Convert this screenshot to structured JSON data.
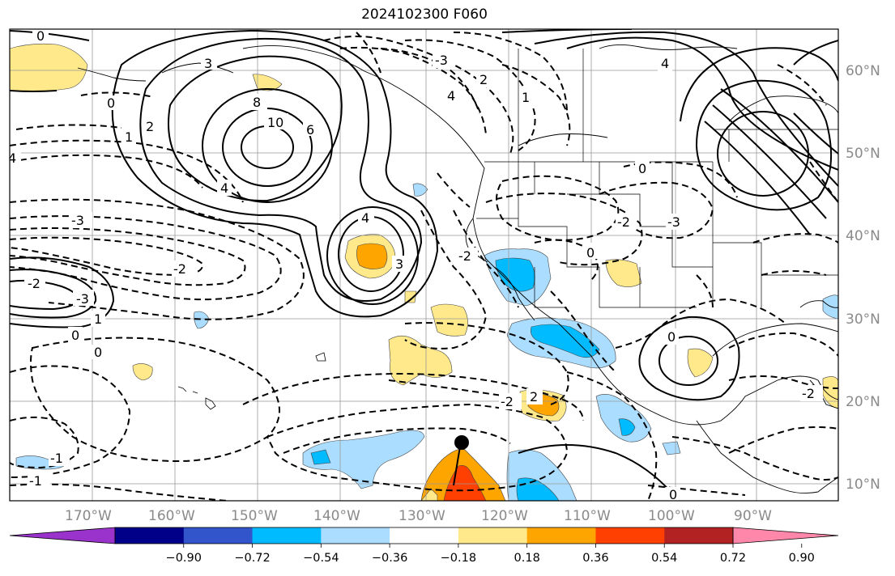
{
  "title": "2024102300 F060",
  "map": {
    "type": "contour-map",
    "longitude_labels": [
      "170°W",
      "160°W",
      "150°W",
      "140°W",
      "130°W",
      "120°W",
      "110°W",
      "100°W",
      "90°W"
    ],
    "latitude_labels": [
      "60°N",
      "50°N",
      "40°N",
      "30°N",
      "20°N",
      "10°N"
    ],
    "contour_labels": [
      {
        "id": "c0a",
        "text": "0"
      },
      {
        "id": "c3a",
        "text": "3"
      },
      {
        "id": "c8",
        "text": "8"
      },
      {
        "id": "c10",
        "text": "10"
      },
      {
        "id": "c6",
        "text": "6"
      },
      {
        "id": "c0b",
        "text": "0"
      },
      {
        "id": "c1a",
        "text": "1"
      },
      {
        "id": "c2a",
        "text": "2"
      },
      {
        "id": "c4a",
        "text": "4"
      },
      {
        "id": "c4b",
        "text": "4"
      },
      {
        "id": "cm3a",
        "text": "-3"
      },
      {
        "id": "cm2a",
        "text": "-2"
      },
      {
        "id": "c4c",
        "text": "4"
      },
      {
        "id": "c3b",
        "text": "3"
      },
      {
        "id": "cm2b",
        "text": "-2"
      },
      {
        "id": "cm3b",
        "text": "-3"
      },
      {
        "id": "c1b",
        "text": "1"
      },
      {
        "id": "c0c",
        "text": "0"
      },
      {
        "id": "cm0",
        "text": "0"
      },
      {
        "id": "c3c",
        "text": "-3"
      },
      {
        "id": "c4d",
        "text": "4"
      },
      {
        "id": "c2b",
        "text": "2"
      },
      {
        "id": "cm2c",
        "text": "-2"
      },
      {
        "id": "cm3c",
        "text": "-3"
      },
      {
        "id": "c0d",
        "text": "0"
      },
      {
        "id": "c1c",
        "text": "1"
      },
      {
        "id": "c2c",
        "text": "-2"
      },
      {
        "id": "cm1",
        "text": "-1"
      },
      {
        "id": "cm2d",
        "text": "-2"
      },
      {
        "id": "c0e",
        "text": "0"
      },
      {
        "id": "c2d",
        "text": "2"
      },
      {
        "id": "c0f",
        "text": "0"
      },
      {
        "id": "c1d",
        "text": "-1"
      },
      {
        "id": "cm2e",
        "text": "-2"
      },
      {
        "id": "c0g",
        "text": "0"
      },
      {
        "id": "c4e",
        "text": "4"
      }
    ],
    "marker": "black-dot-storm-center"
  },
  "colorbar": {
    "tick_labels": [
      "−0.90",
      "−0.72",
      "−0.54",
      "−0.36",
      "−0.18",
      "0.18",
      "0.36",
      "0.54",
      "0.72",
      "0.90"
    ],
    "colors": [
      "#9933cc",
      "#000088",
      "#3355cc",
      "#00bbff",
      "#aaddff",
      "#ffffff",
      "#ffe98a",
      "#ffa500",
      "#ff4000",
      "#b22222",
      "#ff88aa"
    ]
  }
}
